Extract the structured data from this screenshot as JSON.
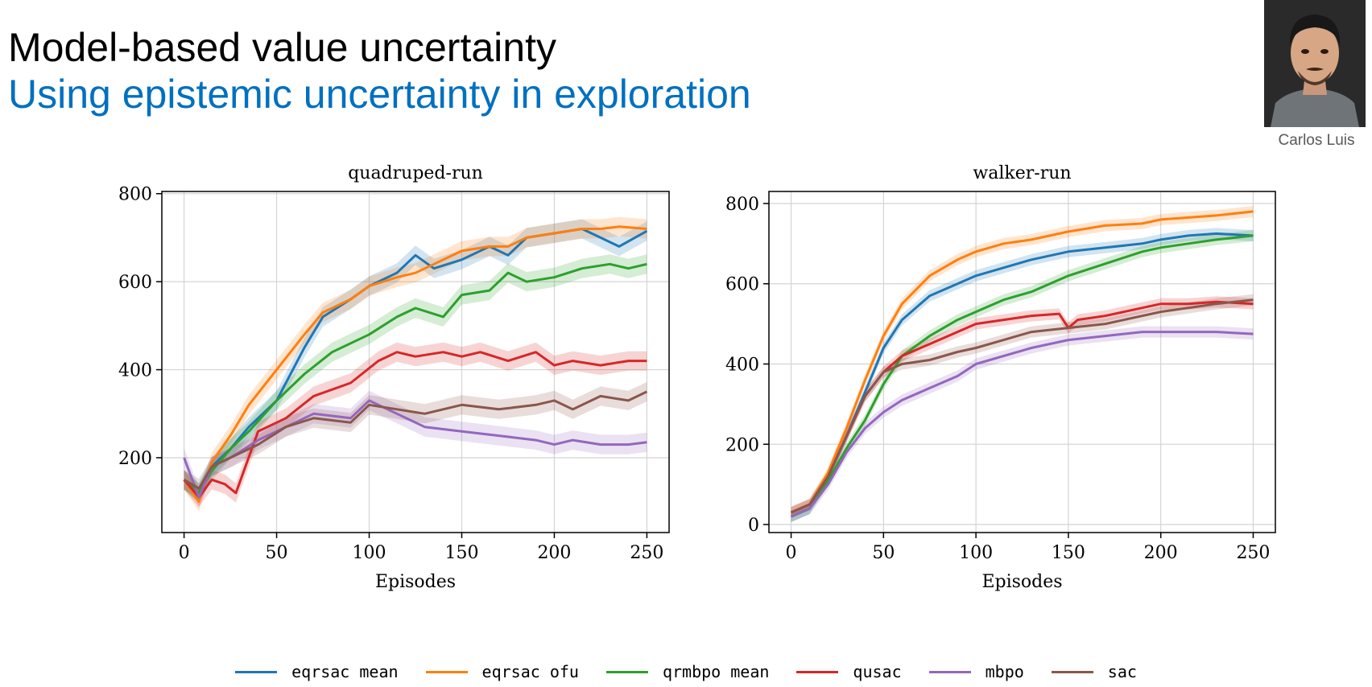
{
  "slide": {
    "title": "Model-based value uncertainty",
    "subtitle": "Using epistemic uncertainty in exploration",
    "presenter": "Carlos Luis"
  },
  "colors": {
    "subtitle": "#0070c0",
    "eqrsac mean": "#1f77b4",
    "eqrsac ofu": "#ff7f0e",
    "qrmbpo mean": "#2ca02c",
    "qusac": "#d62728",
    "mbpo": "#9467bd",
    "sac": "#8c564b"
  },
  "legend": [
    "eqrsac mean",
    "eqrsac ofu",
    "qrmbpo mean",
    "qusac",
    "mbpo",
    "sac"
  ],
  "chart_data": [
    {
      "type": "line",
      "title": "quadruped-run",
      "xlabel": "Episodes",
      "ylabel": "",
      "xlim": [
        -12,
        262
      ],
      "ylim": [
        30,
        805
      ],
      "xticks": [
        0,
        50,
        100,
        150,
        200,
        250
      ],
      "yticks": [
        200,
        400,
        600,
        800
      ],
      "grid": true,
      "shaded_bands": true,
      "series": [
        {
          "name": "eqrsac mean",
          "x": [
            0,
            8,
            15,
            25,
            35,
            50,
            65,
            75,
            90,
            100,
            115,
            125,
            135,
            150,
            165,
            175,
            185,
            200,
            215,
            225,
            235,
            250
          ],
          "y": [
            150,
            120,
            180,
            220,
            270,
            330,
            450,
            520,
            560,
            590,
            620,
            660,
            630,
            650,
            680,
            660,
            700,
            710,
            720,
            700,
            680,
            715
          ]
        },
        {
          "name": "eqrsac ofu",
          "x": [
            0,
            8,
            15,
            25,
            35,
            50,
            65,
            75,
            90,
            100,
            115,
            125,
            135,
            150,
            165,
            175,
            185,
            200,
            215,
            225,
            235,
            250
          ],
          "y": [
            150,
            100,
            190,
            250,
            320,
            400,
            480,
            530,
            560,
            590,
            610,
            620,
            640,
            670,
            680,
            680,
            700,
            710,
            720,
            720,
            725,
            720
          ]
        },
        {
          "name": "qrmbpo mean",
          "x": [
            0,
            8,
            15,
            25,
            35,
            50,
            65,
            80,
            100,
            115,
            125,
            140,
            150,
            165,
            175,
            185,
            200,
            215,
            230,
            240,
            250
          ],
          "y": [
            150,
            120,
            170,
            220,
            260,
            330,
            390,
            440,
            480,
            520,
            540,
            520,
            570,
            580,
            620,
            600,
            610,
            630,
            640,
            630,
            640
          ]
        },
        {
          "name": "qusac",
          "x": [
            0,
            8,
            15,
            22,
            28,
            40,
            55,
            70,
            90,
            105,
            115,
            125,
            140,
            150,
            160,
            175,
            190,
            200,
            210,
            225,
            240,
            250
          ],
          "y": [
            150,
            110,
            150,
            140,
            120,
            260,
            290,
            340,
            370,
            420,
            440,
            430,
            440,
            430,
            440,
            420,
            440,
            410,
            420,
            410,
            420,
            420
          ]
        },
        {
          "name": "mbpo",
          "x": [
            0,
            8,
            15,
            25,
            40,
            55,
            70,
            90,
            100,
            115,
            130,
            150,
            170,
            190,
            200,
            210,
            225,
            240,
            250
          ],
          "y": [
            200,
            110,
            180,
            200,
            240,
            270,
            300,
            290,
            330,
            300,
            270,
            260,
            250,
            240,
            230,
            240,
            230,
            230,
            235
          ]
        },
        {
          "name": "sac",
          "x": [
            0,
            8,
            15,
            25,
            40,
            55,
            70,
            90,
            100,
            115,
            130,
            150,
            170,
            190,
            200,
            210,
            225,
            240,
            250
          ],
          "y": [
            150,
            130,
            180,
            200,
            230,
            270,
            290,
            280,
            320,
            310,
            300,
            320,
            310,
            320,
            330,
            310,
            340,
            330,
            350
          ]
        }
      ]
    },
    {
      "type": "line",
      "title": "walker-run",
      "xlabel": "Episodes",
      "ylabel": "",
      "xlim": [
        -12,
        262
      ],
      "ylim": [
        -20,
        830
      ],
      "xticks": [
        0,
        50,
        100,
        150,
        200,
        250
      ],
      "yticks": [
        0,
        200,
        400,
        600,
        800
      ],
      "grid": true,
      "shaded_bands": true,
      "series": [
        {
          "name": "eqrsac mean",
          "x": [
            0,
            10,
            20,
            30,
            40,
            50,
            60,
            75,
            90,
            100,
            115,
            130,
            150,
            170,
            190,
            200,
            215,
            230,
            250
          ],
          "y": [
            20,
            40,
            120,
            220,
            330,
            440,
            510,
            570,
            600,
            620,
            640,
            660,
            680,
            690,
            700,
            710,
            720,
            725,
            720
          ]
        },
        {
          "name": "eqrsac ofu",
          "x": [
            0,
            10,
            20,
            30,
            40,
            50,
            60,
            75,
            90,
            100,
            115,
            130,
            150,
            170,
            190,
            200,
            215,
            230,
            250
          ],
          "y": [
            30,
            50,
            130,
            240,
            360,
            470,
            550,
            620,
            660,
            680,
            700,
            710,
            730,
            745,
            750,
            760,
            765,
            770,
            780
          ]
        },
        {
          "name": "qrmbpo mean",
          "x": [
            0,
            10,
            20,
            30,
            40,
            50,
            60,
            75,
            90,
            100,
            115,
            130,
            150,
            170,
            190,
            200,
            215,
            230,
            250
          ],
          "y": [
            20,
            40,
            110,
            190,
            260,
            350,
            420,
            470,
            510,
            530,
            560,
            580,
            620,
            650,
            680,
            690,
            700,
            710,
            720
          ]
        },
        {
          "name": "qusac",
          "x": [
            0,
            10,
            20,
            30,
            40,
            50,
            60,
            75,
            90,
            100,
            115,
            130,
            145,
            150,
            155,
            170,
            190,
            200,
            215,
            230,
            250
          ],
          "y": [
            30,
            50,
            120,
            220,
            320,
            380,
            420,
            450,
            480,
            500,
            510,
            520,
            525,
            490,
            510,
            520,
            540,
            550,
            550,
            555,
            550
          ]
        },
        {
          "name": "mbpo",
          "x": [
            0,
            10,
            20,
            30,
            40,
            50,
            60,
            75,
            90,
            100,
            115,
            130,
            150,
            170,
            190,
            200,
            215,
            230,
            250
          ],
          "y": [
            20,
            40,
            100,
            180,
            240,
            280,
            310,
            340,
            370,
            400,
            420,
            440,
            460,
            470,
            480,
            480,
            480,
            480,
            475
          ]
        },
        {
          "name": "sac",
          "x": [
            0,
            10,
            20,
            30,
            40,
            50,
            60,
            75,
            90,
            100,
            115,
            130,
            150,
            170,
            190,
            200,
            215,
            230,
            250
          ],
          "y": [
            30,
            50,
            120,
            220,
            320,
            380,
            400,
            410,
            430,
            440,
            460,
            480,
            490,
            500,
            520,
            530,
            540,
            550,
            560
          ]
        }
      ]
    }
  ]
}
